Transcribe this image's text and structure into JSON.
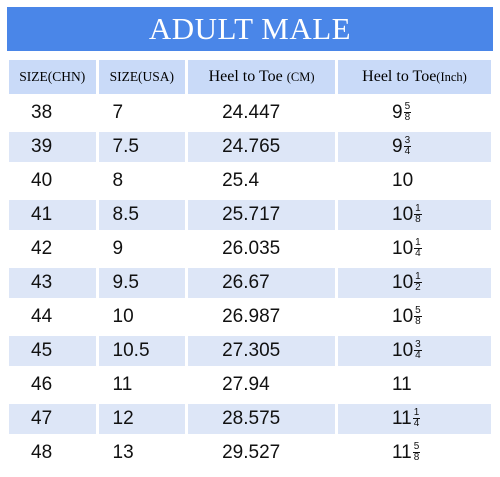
{
  "title": "ADULT MALE",
  "headers": {
    "chn": "SIZE(CHN)",
    "usa": "SIZE(USA)",
    "cm_main": "Heel to Toe",
    "cm_unit": "(CM)",
    "inch_main": "Heel to Toe",
    "inch_unit": "(Inch)"
  },
  "colors": {
    "title_bg": "#4a86e8",
    "header_bg": "#c9daf8",
    "row_alt_bg": "#dde6f7"
  },
  "rows": [
    {
      "chn": "38",
      "usa": "7",
      "cm": "24.447",
      "inch_whole": "9",
      "inch_num": "5",
      "inch_den": "8"
    },
    {
      "chn": "39",
      "usa": "7.5",
      "cm": "24.765",
      "inch_whole": "9",
      "inch_num": "3",
      "inch_den": "4"
    },
    {
      "chn": "40",
      "usa": "8",
      "cm": "25.4",
      "inch_whole": "10",
      "inch_num": "",
      "inch_den": ""
    },
    {
      "chn": "41",
      "usa": "8.5",
      "cm": "25.717",
      "inch_whole": "10",
      "inch_num": "1",
      "inch_den": "8"
    },
    {
      "chn": "42",
      "usa": "9",
      "cm": "26.035",
      "inch_whole": "10",
      "inch_num": "1",
      "inch_den": "4"
    },
    {
      "chn": "43",
      "usa": "9.5",
      "cm": "26.67",
      "inch_whole": "10",
      "inch_num": "1",
      "inch_den": "2"
    },
    {
      "chn": "44",
      "usa": "10",
      "cm": "26.987",
      "inch_whole": "10",
      "inch_num": "5",
      "inch_den": "8"
    },
    {
      "chn": "45",
      "usa": "10.5",
      "cm": "27.305",
      "inch_whole": "10",
      "inch_num": "3",
      "inch_den": "4"
    },
    {
      "chn": "46",
      "usa": "11",
      "cm": "27.94",
      "inch_whole": "11",
      "inch_num": "",
      "inch_den": ""
    },
    {
      "chn": "47",
      "usa": "12",
      "cm": "28.575",
      "inch_whole": "11",
      "inch_num": "1",
      "inch_den": "4"
    },
    {
      "chn": "48",
      "usa": "13",
      "cm": "29.527",
      "inch_whole": "11",
      "inch_num": "5",
      "inch_den": "8"
    }
  ]
}
